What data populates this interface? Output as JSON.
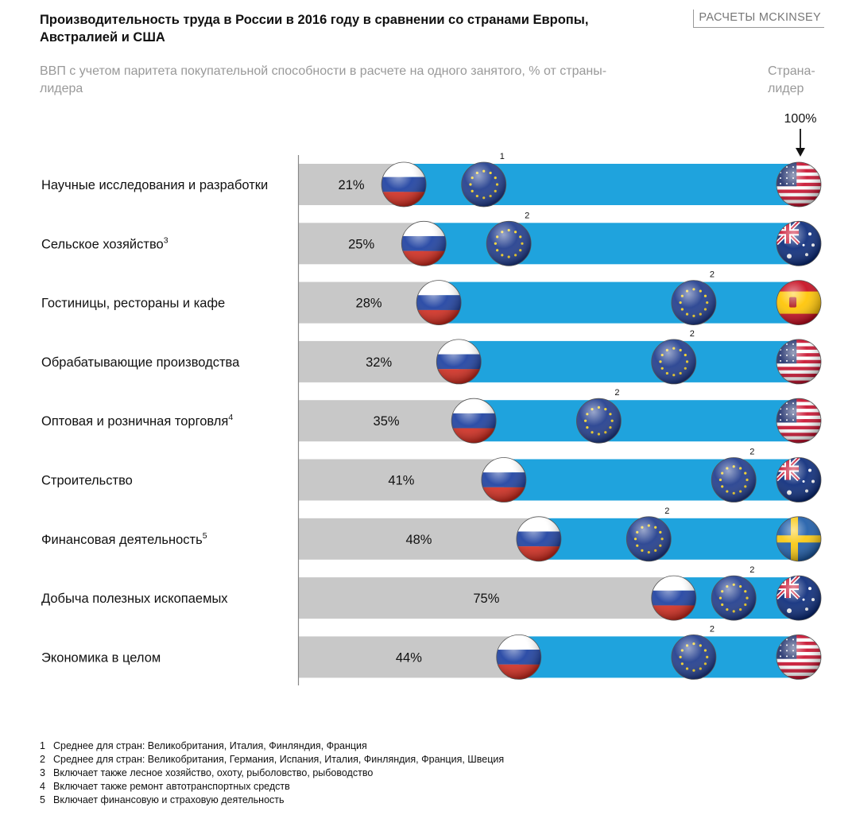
{
  "header": {
    "title": "Производительность труда в России в 2016 году в сравнении со странами Европы, Австралией и США",
    "source": "РАСЧЕТЫ MCKINSEY",
    "subtitle": "ВВП с учетом паритета покупательной способности в расчете на одного занятого, % от страны-лидера",
    "leader_label": "Страна-лидер"
  },
  "colors": {
    "gray_bar": "#c8c8c8",
    "blue_bar": "#1fa3dd",
    "eu_blue": "#1f3b8c",
    "eu_star": "#f7d21f",
    "axis": "#888888"
  },
  "chart_data": {
    "type": "bar",
    "title": "Производительность труда в России в 2016 году в сравнении со странами Европы, Австралией и США",
    "xlabel": "",
    "ylabel": "ВВП с учетом паритета покупательной способности в расчете на одного занятого, % от страны-лидера",
    "xlim": [
      0,
      100
    ],
    "leader_value": 100,
    "leader_value_label": "100%",
    "categories": [
      "Научные исследования и разработки",
      "Сельское хозяйство",
      "Гостиницы, рестораны и кафе",
      "Обрабатывающие производства",
      "Оптовая и розничная торговля",
      "Строительство",
      "Финансовая деятельность",
      "Добыча полезных ископаемых",
      "Экономика в целом"
    ],
    "category_footnotes": [
      "",
      "3",
      "",
      "",
      "4",
      "",
      "5",
      "",
      ""
    ],
    "series": [
      {
        "name": "Россия",
        "values": [
          21,
          25,
          28,
          32,
          35,
          41,
          48,
          75,
          44
        ],
        "value_labels": [
          "21%",
          "25%",
          "28%",
          "32%",
          "35%",
          "41%",
          "48%",
          "75%",
          "44%"
        ]
      },
      {
        "name": "Европа (среднее)",
        "values": [
          37,
          42,
          79,
          75,
          60,
          87,
          70,
          87,
          79
        ],
        "footnotes": [
          "1",
          "2",
          "2",
          "2",
          "2",
          "2",
          "2",
          "2",
          "2"
        ]
      }
    ],
    "leaders": [
      "usa",
      "australia",
      "spain",
      "usa",
      "usa",
      "australia",
      "sweden",
      "australia",
      "usa"
    ]
  },
  "footnotes": [
    {
      "num": "1",
      "text": "Среднее для стран: Великобритания, Италия, Финляндия, Франция"
    },
    {
      "num": "2",
      "text": "Среднее для стран: Великобритания, Германия, Испания, Италия, Финляндия, Франция, Швеция"
    },
    {
      "num": "3",
      "text": "Включает также лесное хозяйство, охоту, рыболовство, рыбоводство"
    },
    {
      "num": "4",
      "text": "Включает также ремонт автотранспортных средств"
    },
    {
      "num": "5",
      "text": "Включает финансовую и страховую деятельность"
    }
  ]
}
